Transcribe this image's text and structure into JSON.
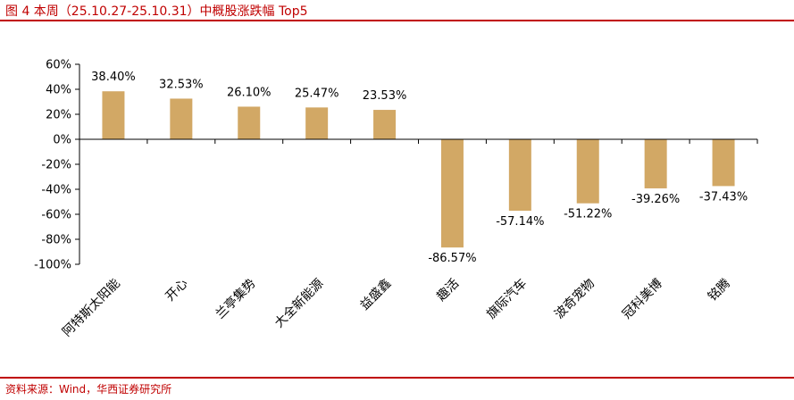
{
  "figure": {
    "title": "图 4   本周（25.10.27-25.10.31）中概股涨跌幅 Top5",
    "source": "资料来源：Wind，华西证券研究所",
    "accent_color": "#c00000"
  },
  "chart_data": {
    "type": "bar",
    "title": "本周（25.10.27-25.10.31）中概股涨跌幅 Top5",
    "xlabel": "",
    "ylabel": "",
    "ylim": [
      -100,
      60
    ],
    "yticks": [
      60,
      40,
      20,
      0,
      -20,
      -40,
      -60,
      -80,
      -100
    ],
    "ytick_labels": [
      "60%",
      "40%",
      "20%",
      "0%",
      "-20%",
      "-40%",
      "-60%",
      "-80%",
      "-100%"
    ],
    "grid": false,
    "bar_color": "#d2a865",
    "categories": [
      "阿特斯太阳能",
      "开心",
      "兰亭集势",
      "大全新能源",
      "益盛鑫",
      "趣活",
      "旗际汽车",
      "波奇宠物",
      "冠科美博",
      "铭腾"
    ],
    "values": [
      38.4,
      32.53,
      26.1,
      25.47,
      23.53,
      -86.57,
      -57.14,
      -51.22,
      -39.26,
      -37.43
    ],
    "data_labels": [
      "38.40%",
      "32.53%",
      "26.10%",
      "25.47%",
      "23.53%",
      "-86.57%",
      "-57.14%",
      "-51.22%",
      "-39.26%",
      "-37.43%"
    ]
  }
}
